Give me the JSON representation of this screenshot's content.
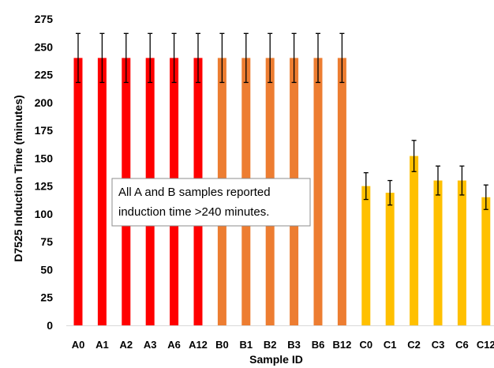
{
  "chart_data": {
    "type": "bar",
    "xlabel": "Sample ID",
    "ylabel": "D7525 Induction Time (minutes)",
    "ylim": [
      0,
      275
    ],
    "yticks": [
      0,
      25,
      50,
      75,
      100,
      125,
      150,
      175,
      200,
      225,
      250,
      275
    ],
    "grid": false,
    "legend": "none",
    "categories": [
      "A0",
      "A1",
      "A2",
      "A3",
      "A6",
      "A12",
      "B0",
      "B1",
      "B2",
      "B3",
      "B6",
      "B12",
      "C0",
      "C1",
      "C2",
      "C3",
      "C6",
      "C12"
    ],
    "values": [
      240,
      240,
      240,
      240,
      240,
      240,
      240,
      240,
      240,
      240,
      240,
      240,
      125,
      119,
      152,
      130,
      130,
      115
    ],
    "error": [
      22,
      22,
      22,
      22,
      22,
      22,
      22,
      22,
      22,
      22,
      22,
      22,
      12,
      11,
      14,
      13,
      13,
      11
    ],
    "colors": [
      "#ff0000",
      "#ff0000",
      "#ff0000",
      "#ff0000",
      "#ff0000",
      "#ff0000",
      "#ed7d31",
      "#ed7d31",
      "#ed7d31",
      "#ed7d31",
      "#ed7d31",
      "#ed7d31",
      "#ffc000",
      "#ffc000",
      "#ffc000",
      "#ffc000",
      "#ffc000",
      "#ffc000"
    ],
    "annotation": {
      "lines": [
        "All A and B samples reported",
        "induction time >240 minutes."
      ]
    }
  }
}
